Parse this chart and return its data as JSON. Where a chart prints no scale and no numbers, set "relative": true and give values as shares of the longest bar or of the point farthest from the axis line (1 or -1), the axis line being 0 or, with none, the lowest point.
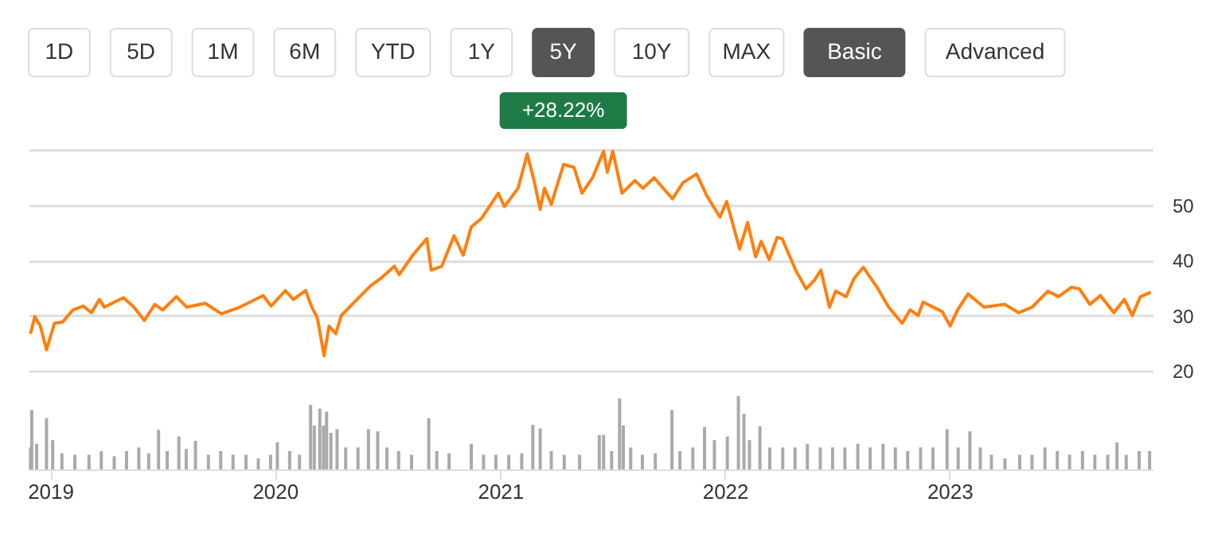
{
  "chart_data": [
    {
      "type": "other",
      "categories": [
        "1D",
        "5D",
        "1M",
        "6M",
        "YTD",
        "1Y",
        "5Y",
        "10Y",
        "MAX",
        "Basic",
        "Advanced"
      ],
      "colors": [
        "#ffffff",
        "#ffffff",
        "#ffffff",
        "#ffffff",
        "#ffffff",
        "#ffffff",
        "#555555",
        "#ffffff",
        "#ffffff",
        "#555555",
        "#ffffff"
      ],
      "annotations": [
        "+28.22%"
      ]
    },
    {
      "type": "line",
      "tick_labels": "y",
      "grid": "y",
      "xlim": [
        "2018-11-27",
        "2023-11-27"
      ],
      "ylim": [
        20,
        60
      ],
      "yticks": [
        20,
        30,
        40,
        50,
        {
          "value": 60,
          "label": null
        }
      ],
      "x": [
        "2018-11-30",
        "2018-12-07",
        "2018-12-16",
        "2018-12-26",
        "2019-01-08",
        "2019-01-21",
        "2019-02-07",
        "2019-02-24",
        "2019-03-09",
        "2019-03-22",
        "2019-03-30",
        "2019-04-30",
        "2019-05-17",
        "2019-06-03",
        "2019-06-20",
        "2019-07-03",
        "2019-07-25",
        "2019-08-11",
        "2019-09-10",
        "2019-10-06",
        "2019-11-01",
        "2019-12-13",
        "2019-12-26",
        "2020-01-18",
        "2020-01-31",
        "2020-02-20",
        "2020-03-01",
        "2020-03-10",
        "2020-03-21",
        "2020-03-29",
        "2020-04-09",
        "2020-04-18",
        "2020-05-09",
        "2020-06-04",
        "2020-06-21",
        "2020-07-13",
        "2020-07-21",
        "2020-08-12",
        "2020-09-04",
        "2020-09-11",
        "2020-09-28",
        "2020-10-18",
        "2020-11-02",
        "2020-11-15",
        "2020-12-02",
        "2020-12-29",
        "2021-01-08",
        "2021-01-30",
        "2021-02-14",
        "2021-02-25",
        "2021-03-07",
        "2021-03-14",
        "2021-03-25",
        "2021-04-14",
        "2021-05-01",
        "2021-05-14",
        "2021-05-31",
        "2021-06-18",
        "2021-06-24",
        "2021-07-03",
        "2021-07-18",
        "2021-08-08",
        "2021-08-21",
        "2021-09-08",
        "2021-10-08",
        "2021-10-25",
        "2021-11-16",
        "2021-12-03",
        "2021-12-24",
        "2022-01-04",
        "2022-01-25",
        "2022-02-07",
        "2022-02-20",
        "2022-03-01",
        "2022-03-14",
        "2022-03-27",
        "2022-04-04",
        "2022-04-26",
        "2022-05-13",
        "2022-05-26",
        "2022-06-06",
        "2022-06-20",
        "2022-06-30",
        "2022-07-17",
        "2022-07-30",
        "2022-08-14",
        "2022-09-07",
        "2022-09-24",
        "2022-10-16",
        "2022-10-29",
        "2022-11-11",
        "2022-11-19",
        "2022-12-20",
        "2023-01-02",
        "2023-01-14",
        "2023-01-31",
        "2023-02-26",
        "2023-04-01",
        "2023-04-23",
        "2023-05-15",
        "2023-06-10",
        "2023-06-27",
        "2023-07-18",
        "2023-07-31",
        "2023-08-17",
        "2023-09-03",
        "2023-09-25",
        "2023-10-12",
        "2023-10-25",
        "2023-11-07",
        "2023-11-24"
      ],
      "series": [
        {
          "color": "#ff7f0e",
          "values": [
            26.7,
            29.8,
            28.1,
            23.8,
            28.6,
            28.8,
            31.0,
            31.7,
            30.5,
            32.9,
            31.5,
            33.2,
            31.5,
            29.1,
            32.0,
            31.0,
            33.4,
            31.5,
            32.2,
            30.3,
            31.3,
            33.6,
            31.7,
            34.5,
            32.9,
            34.5,
            31.5,
            29.6,
            22.7,
            28.1,
            26.7,
            30.0,
            32.4,
            35.3,
            36.7,
            38.9,
            37.4,
            40.9,
            43.9,
            38.2,
            38.9,
            44.4,
            40.9,
            46.0,
            47.6,
            52.1,
            49.7,
            53.0,
            59.2,
            54.4,
            49.2,
            53.0,
            50.1,
            57.3,
            56.8,
            52.1,
            54.9,
            59.7,
            55.9,
            59.7,
            52.1,
            54.4,
            53.0,
            54.9,
            51.1,
            54.0,
            55.6,
            51.6,
            47.8,
            50.6,
            42.0,
            46.8,
            40.6,
            43.4,
            40.1,
            44.1,
            43.9,
            38.2,
            34.8,
            36.3,
            38.2,
            31.5,
            34.4,
            33.4,
            36.7,
            38.7,
            34.8,
            31.5,
            28.6,
            31.0,
            30.0,
            32.4,
            30.7,
            28.1,
            31.0,
            33.9,
            31.5,
            32.0,
            30.5,
            31.5,
            34.4,
            33.4,
            35.1,
            34.8,
            32.0,
            33.6,
            30.5,
            32.9,
            30.0,
            33.4,
            34.2
          ]
        }
      ]
    },
    {
      "type": "bar",
      "relative": true,
      "tick_labels": "x",
      "xlim": [
        "2018-11-27",
        "2023-11-27"
      ],
      "xticks": [
        {
          "value": "2019-01-01",
          "label": "2019"
        },
        {
          "value": "2020-01-01",
          "label": "2020"
        },
        {
          "value": "2021-01-01",
          "label": "2021"
        },
        {
          "value": "2022-01-01",
          "label": "2022"
        },
        {
          "value": "2023-01-01",
          "label": "2023"
        }
      ],
      "x": [
        "2018-11-30",
        "2018-12-02",
        "2018-12-10",
        "2018-12-26",
        "2019-01-05",
        "2019-01-20",
        "2019-02-10",
        "2019-03-05",
        "2019-03-25",
        "2019-04-15",
        "2019-05-05",
        "2019-05-25",
        "2019-06-10",
        "2019-06-26",
        "2019-07-10",
        "2019-07-29",
        "2019-08-10",
        "2019-08-25",
        "2019-09-15",
        "2019-10-05",
        "2019-10-25",
        "2019-11-15",
        "2019-12-05",
        "2019-12-25",
        "2020-01-05",
        "2020-01-25",
        "2020-02-10",
        "2020-02-28",
        "2020-03-05",
        "2020-03-14",
        "2020-03-20",
        "2020-03-25",
        "2020-04-01",
        "2020-04-11",
        "2020-04-25",
        "2020-05-15",
        "2020-06-01",
        "2020-06-16",
        "2020-07-01",
        "2020-07-20",
        "2020-08-10",
        "2020-09-07",
        "2020-09-20",
        "2020-10-10",
        "2020-11-15",
        "2020-12-05",
        "2020-12-25",
        "2021-01-15",
        "2021-02-05",
        "2021-02-23",
        "2021-03-07",
        "2021-03-25",
        "2021-04-15",
        "2021-05-10",
        "2021-06-11",
        "2021-06-18",
        "2021-07-01",
        "2021-07-14",
        "2021-07-20",
        "2021-08-01",
        "2021-08-20",
        "2021-09-10",
        "2021-10-07",
        "2021-10-20",
        "2021-11-10",
        "2021-11-29",
        "2021-12-15",
        "2022-01-05",
        "2022-01-23",
        "2022-02-01",
        "2022-02-10",
        "2022-02-27",
        "2022-03-15",
        "2022-04-05",
        "2022-04-25",
        "2022-05-15",
        "2022-06-05",
        "2022-06-25",
        "2022-07-15",
        "2022-08-05",
        "2022-08-25",
        "2022-09-15",
        "2022-10-05",
        "2022-10-25",
        "2022-11-15",
        "2022-12-05",
        "2022-12-28",
        "2023-01-15",
        "2023-02-03",
        "2023-02-20",
        "2023-03-10",
        "2023-04-01",
        "2023-04-25",
        "2023-05-15",
        "2023-06-05",
        "2023-06-25",
        "2023-07-15",
        "2023-08-05",
        "2023-08-25",
        "2023-09-15",
        "2023-09-30",
        "2023-10-15",
        "2023-11-05",
        "2023-11-22"
      ],
      "series": [
        {
          "color": "#aaaaaa",
          "values": [
            0.3,
            0.81,
            0.35,
            0.7,
            0.4,
            0.22,
            0.2,
            0.2,
            0.25,
            0.18,
            0.25,
            0.3,
            0.22,
            0.54,
            0.25,
            0.45,
            0.28,
            0.39,
            0.2,
            0.25,
            0.2,
            0.2,
            0.15,
            0.2,
            0.37,
            0.25,
            0.2,
            0.88,
            0.6,
            0.83,
            0.6,
            0.79,
            0.5,
            0.55,
            0.3,
            0.3,
            0.55,
            0.52,
            0.3,
            0.25,
            0.2,
            0.7,
            0.25,
            0.22,
            0.35,
            0.2,
            0.2,
            0.2,
            0.22,
            0.61,
            0.56,
            0.25,
            0.2,
            0.2,
            0.47,
            0.47,
            0.25,
            0.97,
            0.6,
            0.3,
            0.2,
            0.22,
            0.81,
            0.25,
            0.3,
            0.58,
            0.4,
            0.45,
            1,
            0.76,
            0.4,
            0.59,
            0.3,
            0.3,
            0.3,
            0.35,
            0.3,
            0.3,
            0.3,
            0.35,
            0.3,
            0.35,
            0.3,
            0.25,
            0.3,
            0.3,
            0.55,
            0.3,
            0.52,
            0.3,
            0.2,
            0.15,
            0.2,
            0.2,
            0.3,
            0.25,
            0.2,
            0.25,
            0.2,
            0.2,
            0.37,
            0.2,
            0.25,
            0.25
          ]
        }
      ]
    }
  ]
}
